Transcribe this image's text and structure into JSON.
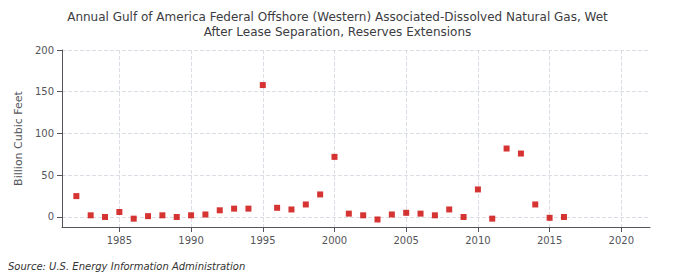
{
  "chart_data": {
    "type": "scatter",
    "title": "Annual Gulf of America Federal Offshore (Western) Associated-Dissolved Natural Gas, Wet\nAfter Lease Separation, Reserves Extensions",
    "ylabel": "Billion Cubic Feet",
    "annotations": [
      "Source: U.S. Energy Information Administration"
    ],
    "x": [
      1982,
      1983,
      1984,
      1985,
      1986,
      1987,
      1988,
      1989,
      1990,
      1991,
      1992,
      1993,
      1994,
      1995,
      1996,
      1997,
      1998,
      1999,
      2000,
      2001,
      2002,
      2003,
      2004,
      2005,
      2006,
      2007,
      2008,
      2009,
      2010,
      2011,
      2012,
      2013,
      2014,
      2015,
      2016
    ],
    "values": [
      25,
      2,
      0,
      6,
      -2,
      1,
      2,
      0,
      2,
      3,
      8,
      10,
      10,
      158,
      11,
      9,
      15,
      27,
      72,
      4,
      2,
      -3,
      3,
      5,
      4,
      2,
      9,
      0,
      33,
      -2,
      82,
      76,
      15,
      -1,
      0
    ],
    "color": "#cc0000",
    "marker": "square",
    "xlim": [
      1981,
      2022
    ],
    "xticks": [
      1985,
      1990,
      1995,
      2000,
      2005,
      2010,
      2015,
      2020
    ],
    "ylim": [
      -12,
      200
    ],
    "yticks": [
      0,
      50,
      100,
      150,
      200
    ],
    "grid": true
  }
}
